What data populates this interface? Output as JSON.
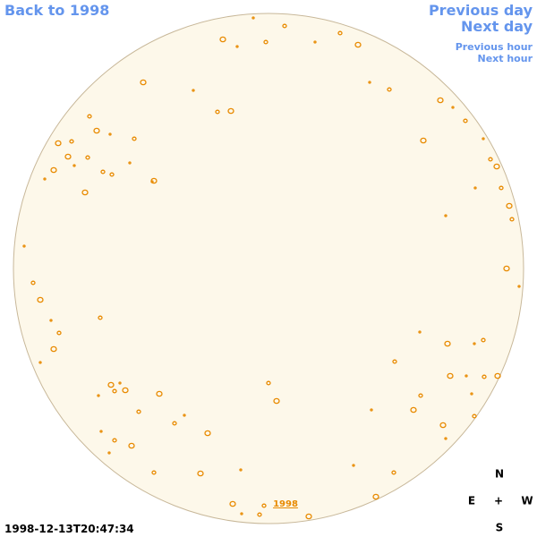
{
  "nav": {
    "back": "Back to 1998",
    "previous_day": "Previous day",
    "next_day": "Next day",
    "previous_hour": "Previous hour",
    "next_hour": "Next hour"
  },
  "timestamp": "1998-12-13T20:47:34",
  "year_link": "1998",
  "compass": {
    "north": "N",
    "east": "E",
    "center": "+",
    "west": "W",
    "south": "S"
  }
}
